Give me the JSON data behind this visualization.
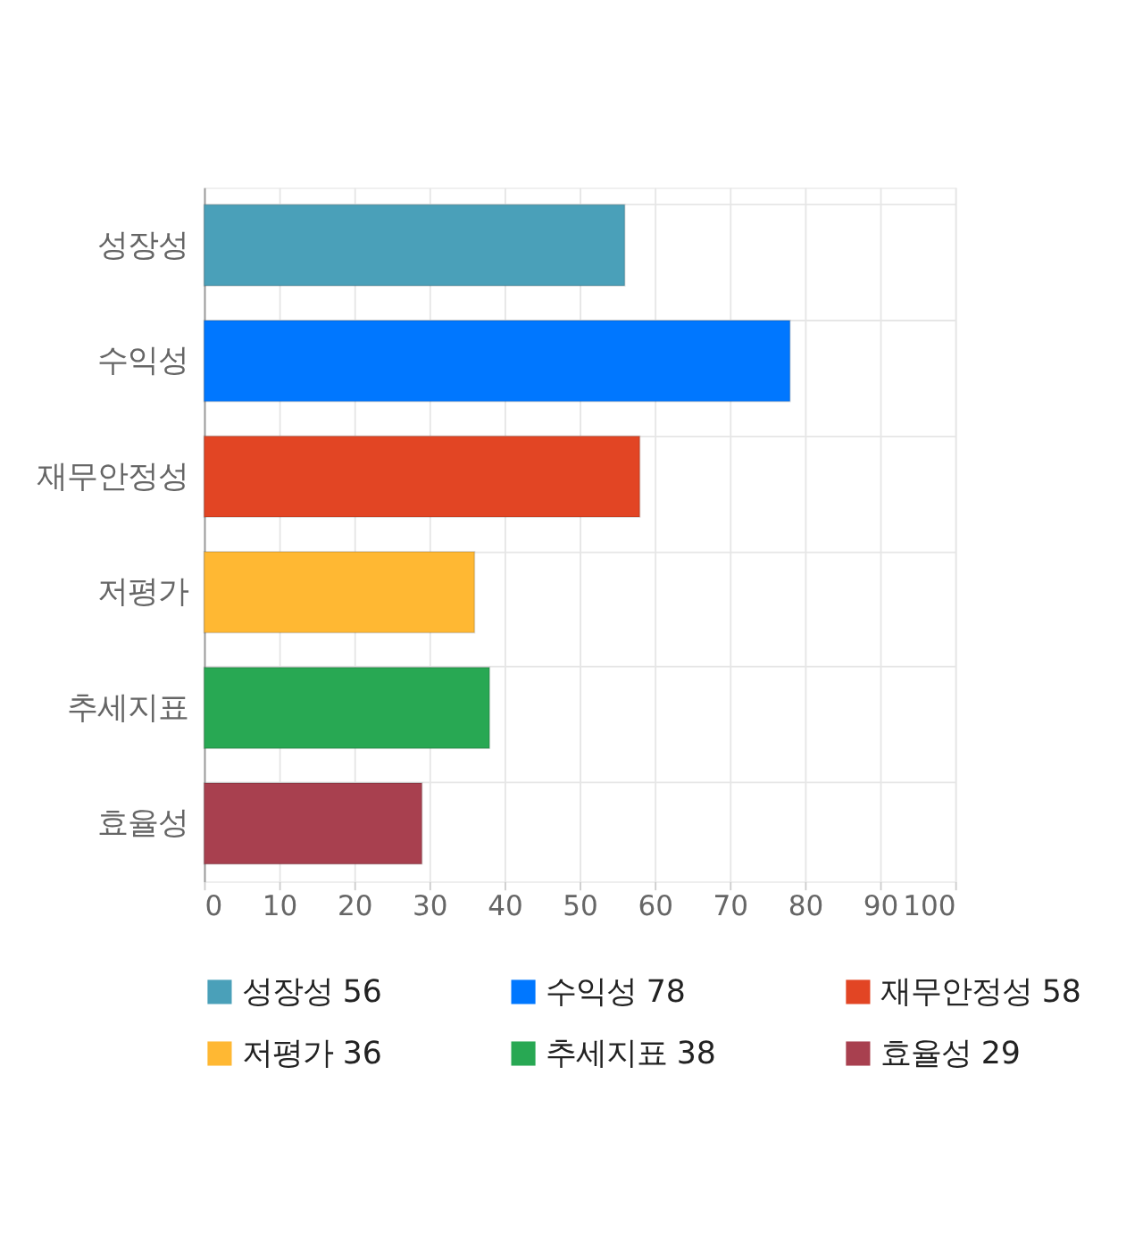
{
  "chart_data": {
    "type": "bar",
    "orientation": "horizontal",
    "categories": [
      "성장성",
      "수익성",
      "재무안정성",
      "저평가",
      "추세지표",
      "효율성"
    ],
    "series": [
      {
        "name": "성장성 56",
        "color": "#4aa0b9",
        "values": [
          56,
          null,
          null,
          null,
          null,
          null
        ]
      },
      {
        "name": "수익성 78",
        "color": "#0077ff",
        "values": [
          null,
          78,
          null,
          null,
          null,
          null
        ]
      },
      {
        "name": "재무안정성 58",
        "color": "#e24524",
        "values": [
          null,
          null,
          58,
          null,
          null,
          null
        ]
      },
      {
        "name": "저평가 36",
        "color": "#ffb833",
        "values": [
          null,
          null,
          null,
          36,
          null,
          null
        ]
      },
      {
        "name": "추세지표 38",
        "color": "#28a853",
        "values": [
          null,
          null,
          null,
          null,
          38,
          null
        ]
      },
      {
        "name": "효율성 29",
        "color": "#a8404f",
        "values": [
          null,
          null,
          null,
          null,
          null,
          29
        ]
      }
    ],
    "xlim": [
      0,
      100
    ],
    "xticks": [
      0,
      10,
      20,
      30,
      40,
      50,
      60,
      70,
      80,
      90,
      100
    ],
    "grid": true,
    "legend": "bottom"
  }
}
